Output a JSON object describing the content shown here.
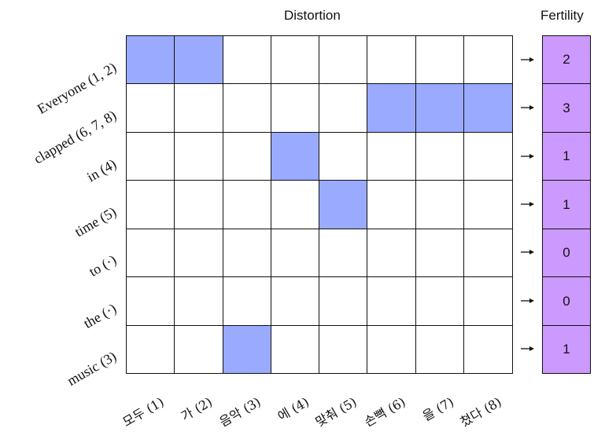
{
  "headers": {
    "distortion": "Distortion",
    "fertility": "Fertility"
  },
  "source_words": [
    "Everyone (1, 2)",
    "clapped (6, 7, 8)",
    "in (4)",
    "time (5)",
    "to (·)",
    "the (·)",
    "music (3)"
  ],
  "target_words": [
    "모두 (1)",
    "가 (2)",
    "음악 (3)",
    "에 (4)",
    "맞춰 (5)",
    "손뼉 (6)",
    "을 (7)",
    "쳤다 (8)"
  ],
  "alignment": [
    [
      1,
      1,
      0,
      0,
      0,
      0,
      0,
      0
    ],
    [
      0,
      0,
      0,
      0,
      0,
      1,
      1,
      1
    ],
    [
      0,
      0,
      0,
      1,
      0,
      0,
      0,
      0
    ],
    [
      0,
      0,
      0,
      0,
      1,
      0,
      0,
      0
    ],
    [
      0,
      0,
      0,
      0,
      0,
      0,
      0,
      0
    ],
    [
      0,
      0,
      0,
      0,
      0,
      0,
      0,
      0
    ],
    [
      0,
      0,
      1,
      0,
      0,
      0,
      0,
      0
    ]
  ],
  "fertility": [
    "2",
    "3",
    "1",
    "1",
    "0",
    "0",
    "1"
  ],
  "colors": {
    "aligned": "#99aaff",
    "fertility": "#cc99ff",
    "border": "#111111"
  }
}
